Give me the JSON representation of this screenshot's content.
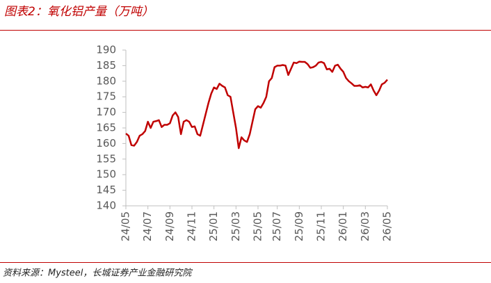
{
  "chart_data": {
    "type": "line",
    "title": "图表2：氧化铝产量（万吨）",
    "source": "资料来源：Mysteel，长城证券产业金融研究院",
    "categories": [
      "24/05",
      null,
      null,
      null,
      null,
      null,
      null,
      null,
      "24/07",
      null,
      null,
      null,
      null,
      null,
      null,
      null,
      "24/09",
      null,
      null,
      null,
      null,
      null,
      null,
      null,
      "24/11",
      null,
      null,
      null,
      null,
      null,
      null,
      null,
      "25/01",
      null,
      null,
      null,
      null,
      null,
      null,
      null,
      "25/03",
      null,
      null,
      null,
      null,
      null,
      null,
      null,
      "25/05",
      null,
      null,
      null,
      null,
      null,
      null,
      "25/07",
      null,
      null,
      null,
      null,
      null,
      null,
      null,
      "25/09",
      null,
      null,
      null,
      null,
      null,
      null,
      null,
      "25/11",
      null,
      null,
      null,
      null,
      null,
      null,
      null,
      "26/01",
      null,
      null,
      null,
      null,
      null,
      null,
      null,
      "26/03",
      null,
      null,
      null,
      null,
      null,
      null,
      null,
      "26/05"
    ],
    "values": [
      163.2,
      162.5,
      159.5,
      159.3,
      160.5,
      162.5,
      163,
      164,
      167,
      165,
      167,
      167.2,
      167.5,
      165.3,
      166,
      166,
      166.5,
      169,
      170,
      168.5,
      163,
      167,
      167.5,
      167,
      165.3,
      165.5,
      163,
      162.5,
      166,
      169.5,
      173,
      176,
      178,
      177.5,
      179.2,
      178.5,
      178,
      175.5,
      175,
      170,
      165,
      158.5,
      162,
      161,
      160.5,
      163,
      167,
      171,
      172,
      171.5,
      173,
      175,
      180,
      181,
      184.5,
      185,
      185,
      185.2,
      185,
      182,
      184,
      186,
      185.8,
      186.3,
      186.2,
      186.2,
      185.5,
      184.3,
      184.5,
      185,
      186,
      186.2,
      185.8,
      183.8,
      184,
      183,
      185,
      185.3,
      184,
      183,
      181,
      180,
      179.3,
      178.5,
      178.5,
      178.7,
      178,
      178.2,
      178,
      179,
      177,
      175.5,
      177,
      179,
      179.5,
      180.5
    ],
    "color": "#c00000",
    "ylim": [
      140,
      190
    ],
    "yticks": [
      140,
      145,
      150,
      155,
      160,
      165,
      170,
      175,
      180,
      185,
      190
    ]
  }
}
